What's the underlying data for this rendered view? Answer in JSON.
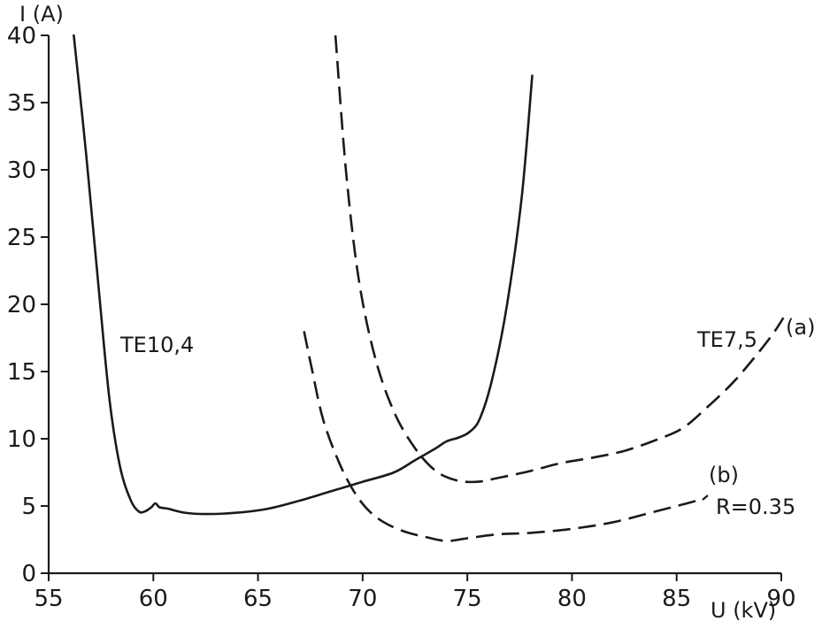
{
  "chart_data": {
    "type": "line",
    "xlabel": "U (kV)",
    "ylabel": "I (A)",
    "xlim": [
      55,
      90
    ],
    "ylim": [
      0,
      40
    ],
    "x_ticks": [
      55,
      60,
      65,
      70,
      75,
      80,
      85,
      90
    ],
    "y_ticks": [
      0,
      5,
      10,
      15,
      20,
      25,
      30,
      35,
      40
    ],
    "grid": false,
    "series": [
      {
        "name": "TE10,4",
        "style": "solid",
        "x": [
          56.2,
          56.8,
          57.4,
          57.9,
          58.4,
          58.9,
          59.3,
          59.6,
          59.9,
          60.1,
          60.3,
          60.7,
          61.5,
          62.5,
          64,
          65.5,
          67,
          68.5,
          70,
          71.5,
          72.5,
          73.5,
          74,
          74.6,
          75.1,
          75.6,
          76.2,
          76.9,
          77.6,
          78.1
        ],
        "values": [
          40,
          31,
          21,
          13,
          8,
          5.5,
          4.6,
          4.6,
          4.9,
          5.2,
          4.9,
          4.8,
          4.5,
          4.4,
          4.5,
          4.8,
          5.4,
          6.1,
          6.8,
          7.5,
          8.4,
          9.3,
          9.8,
          10.1,
          10.5,
          11.5,
          14.5,
          20,
          28,
          37
        ]
      },
      {
        "name": "TE7,5",
        "style": "dashed",
        "x": [
          68.7,
          69.2,
          69.8,
          70.6,
          71.5,
          72.5,
          73.5,
          74.5,
          75.5,
          76.5,
          78,
          79.5,
          81,
          82.5,
          84,
          85.3,
          86.5,
          87.7,
          88.8,
          89.6,
          90.1
        ],
        "values": [
          40,
          30,
          22,
          16,
          12,
          9.3,
          7.6,
          6.9,
          6.8,
          7.1,
          7.6,
          8.2,
          8.6,
          9.1,
          9.9,
          10.8,
          12.4,
          14.2,
          16.2,
          17.8,
          19
        ]
      },
      {
        "name": "R=0.35",
        "style": "dashed",
        "x": [
          67.2,
          67.6,
          68.1,
          68.8,
          69.5,
          70.2,
          71,
          72,
          73,
          74,
          75,
          76.5,
          78,
          80,
          82,
          84,
          85.5,
          86.2
        ],
        "values": [
          18,
          15,
          11.5,
          8.5,
          6.3,
          4.8,
          3.8,
          3.1,
          2.7,
          2.4,
          2.6,
          2.9,
          3,
          3.3,
          3.8,
          4.6,
          5.2,
          5.5
        ]
      }
    ],
    "annotations": {
      "te104": "TE10,4",
      "te75": "TE7,5",
      "a": "(a)",
      "b": "(b)",
      "r": "R=0.35"
    }
  }
}
